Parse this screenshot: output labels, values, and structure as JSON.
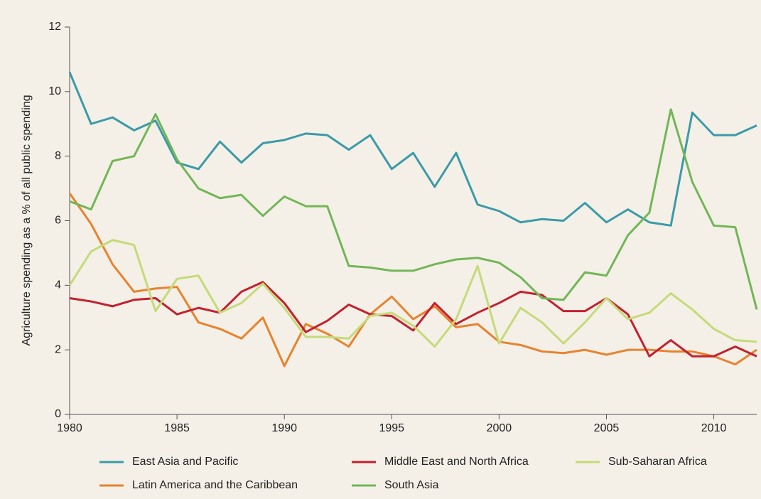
{
  "chart_data": {
    "type": "line",
    "y_label": "Agriculture spending as a % of all public spending",
    "x": [
      1980,
      1981,
      1982,
      1983,
      1984,
      1985,
      1986,
      1987,
      1988,
      1989,
      1990,
      1991,
      1992,
      1993,
      1994,
      1995,
      1996,
      1997,
      1998,
      1999,
      2000,
      2001,
      2002,
      2003,
      2004,
      2005,
      2006,
      2007,
      2008,
      2009,
      2010,
      2011,
      2012
    ],
    "xlim": [
      1980,
      2012
    ],
    "xticks": [
      1980,
      1985,
      1990,
      1995,
      2000,
      2005,
      2010
    ],
    "ylim": [
      0,
      12
    ],
    "yticks": [
      0,
      2,
      4,
      6,
      8,
      10,
      12
    ],
    "legend": "bottom",
    "series": [
      {
        "name": "East Asia and Pacific",
        "color": "#3b9aa8",
        "values": [
          10.6,
          9.0,
          9.2,
          8.8,
          9.1,
          7.8,
          7.6,
          8.45,
          7.8,
          8.4,
          8.5,
          8.7,
          8.65,
          8.2,
          8.65,
          7.6,
          8.1,
          7.05,
          8.1,
          6.5,
          6.3,
          5.95,
          6.05,
          6.0,
          6.55,
          5.95,
          6.35,
          5.95,
          5.85,
          9.35,
          8.65,
          8.65,
          8.95
        ]
      },
      {
        "name": "Latin America and the Caribbean",
        "color": "#e8822f",
        "values": [
          6.85,
          5.9,
          4.65,
          3.8,
          3.9,
          3.95,
          2.85,
          2.65,
          2.35,
          3.0,
          1.5,
          2.8,
          2.5,
          2.1,
          3.1,
          3.65,
          2.95,
          3.35,
          2.7,
          2.8,
          2.25,
          2.15,
          1.95,
          1.9,
          2.0,
          1.85,
          2.0,
          2.0,
          1.95,
          1.95,
          1.8,
          1.55,
          2.0
        ]
      },
      {
        "name": "Middle East and North Africa",
        "color": "#c4202f",
        "values": [
          3.6,
          3.5,
          3.35,
          3.55,
          3.6,
          3.1,
          3.3,
          3.15,
          3.8,
          4.1,
          3.45,
          2.55,
          2.9,
          3.4,
          3.1,
          3.05,
          2.6,
          3.45,
          2.8,
          3.15,
          3.45,
          3.8,
          3.7,
          3.2,
          3.2,
          3.6,
          3.1,
          1.8,
          2.3,
          1.8,
          1.8,
          2.1,
          1.8
        ]
      },
      {
        "name": "South Asia",
        "color": "#72b657",
        "values": [
          6.6,
          6.35,
          7.85,
          8.0,
          9.3,
          7.9,
          7.0,
          6.7,
          6.8,
          6.15,
          6.75,
          6.45,
          6.45,
          4.6,
          4.55,
          4.45,
          4.45,
          4.65,
          4.8,
          4.85,
          4.7,
          4.25,
          3.6,
          3.55,
          4.4,
          4.3,
          5.55,
          6.25,
          9.45,
          7.2,
          5.85,
          5.8,
          3.25
        ]
      },
      {
        "name": "Sub-Saharan Africa",
        "color": "#c5da78",
        "values": [
          4.0,
          5.05,
          5.4,
          5.25,
          3.2,
          4.2,
          4.3,
          3.15,
          3.45,
          4.05,
          3.3,
          2.4,
          2.4,
          2.35,
          3.05,
          3.15,
          2.75,
          2.1,
          2.95,
          4.6,
          2.2,
          3.3,
          2.85,
          2.2,
          2.85,
          3.6,
          2.95,
          3.15,
          3.75,
          3.25,
          2.65,
          2.3,
          2.25
        ]
      }
    ]
  }
}
